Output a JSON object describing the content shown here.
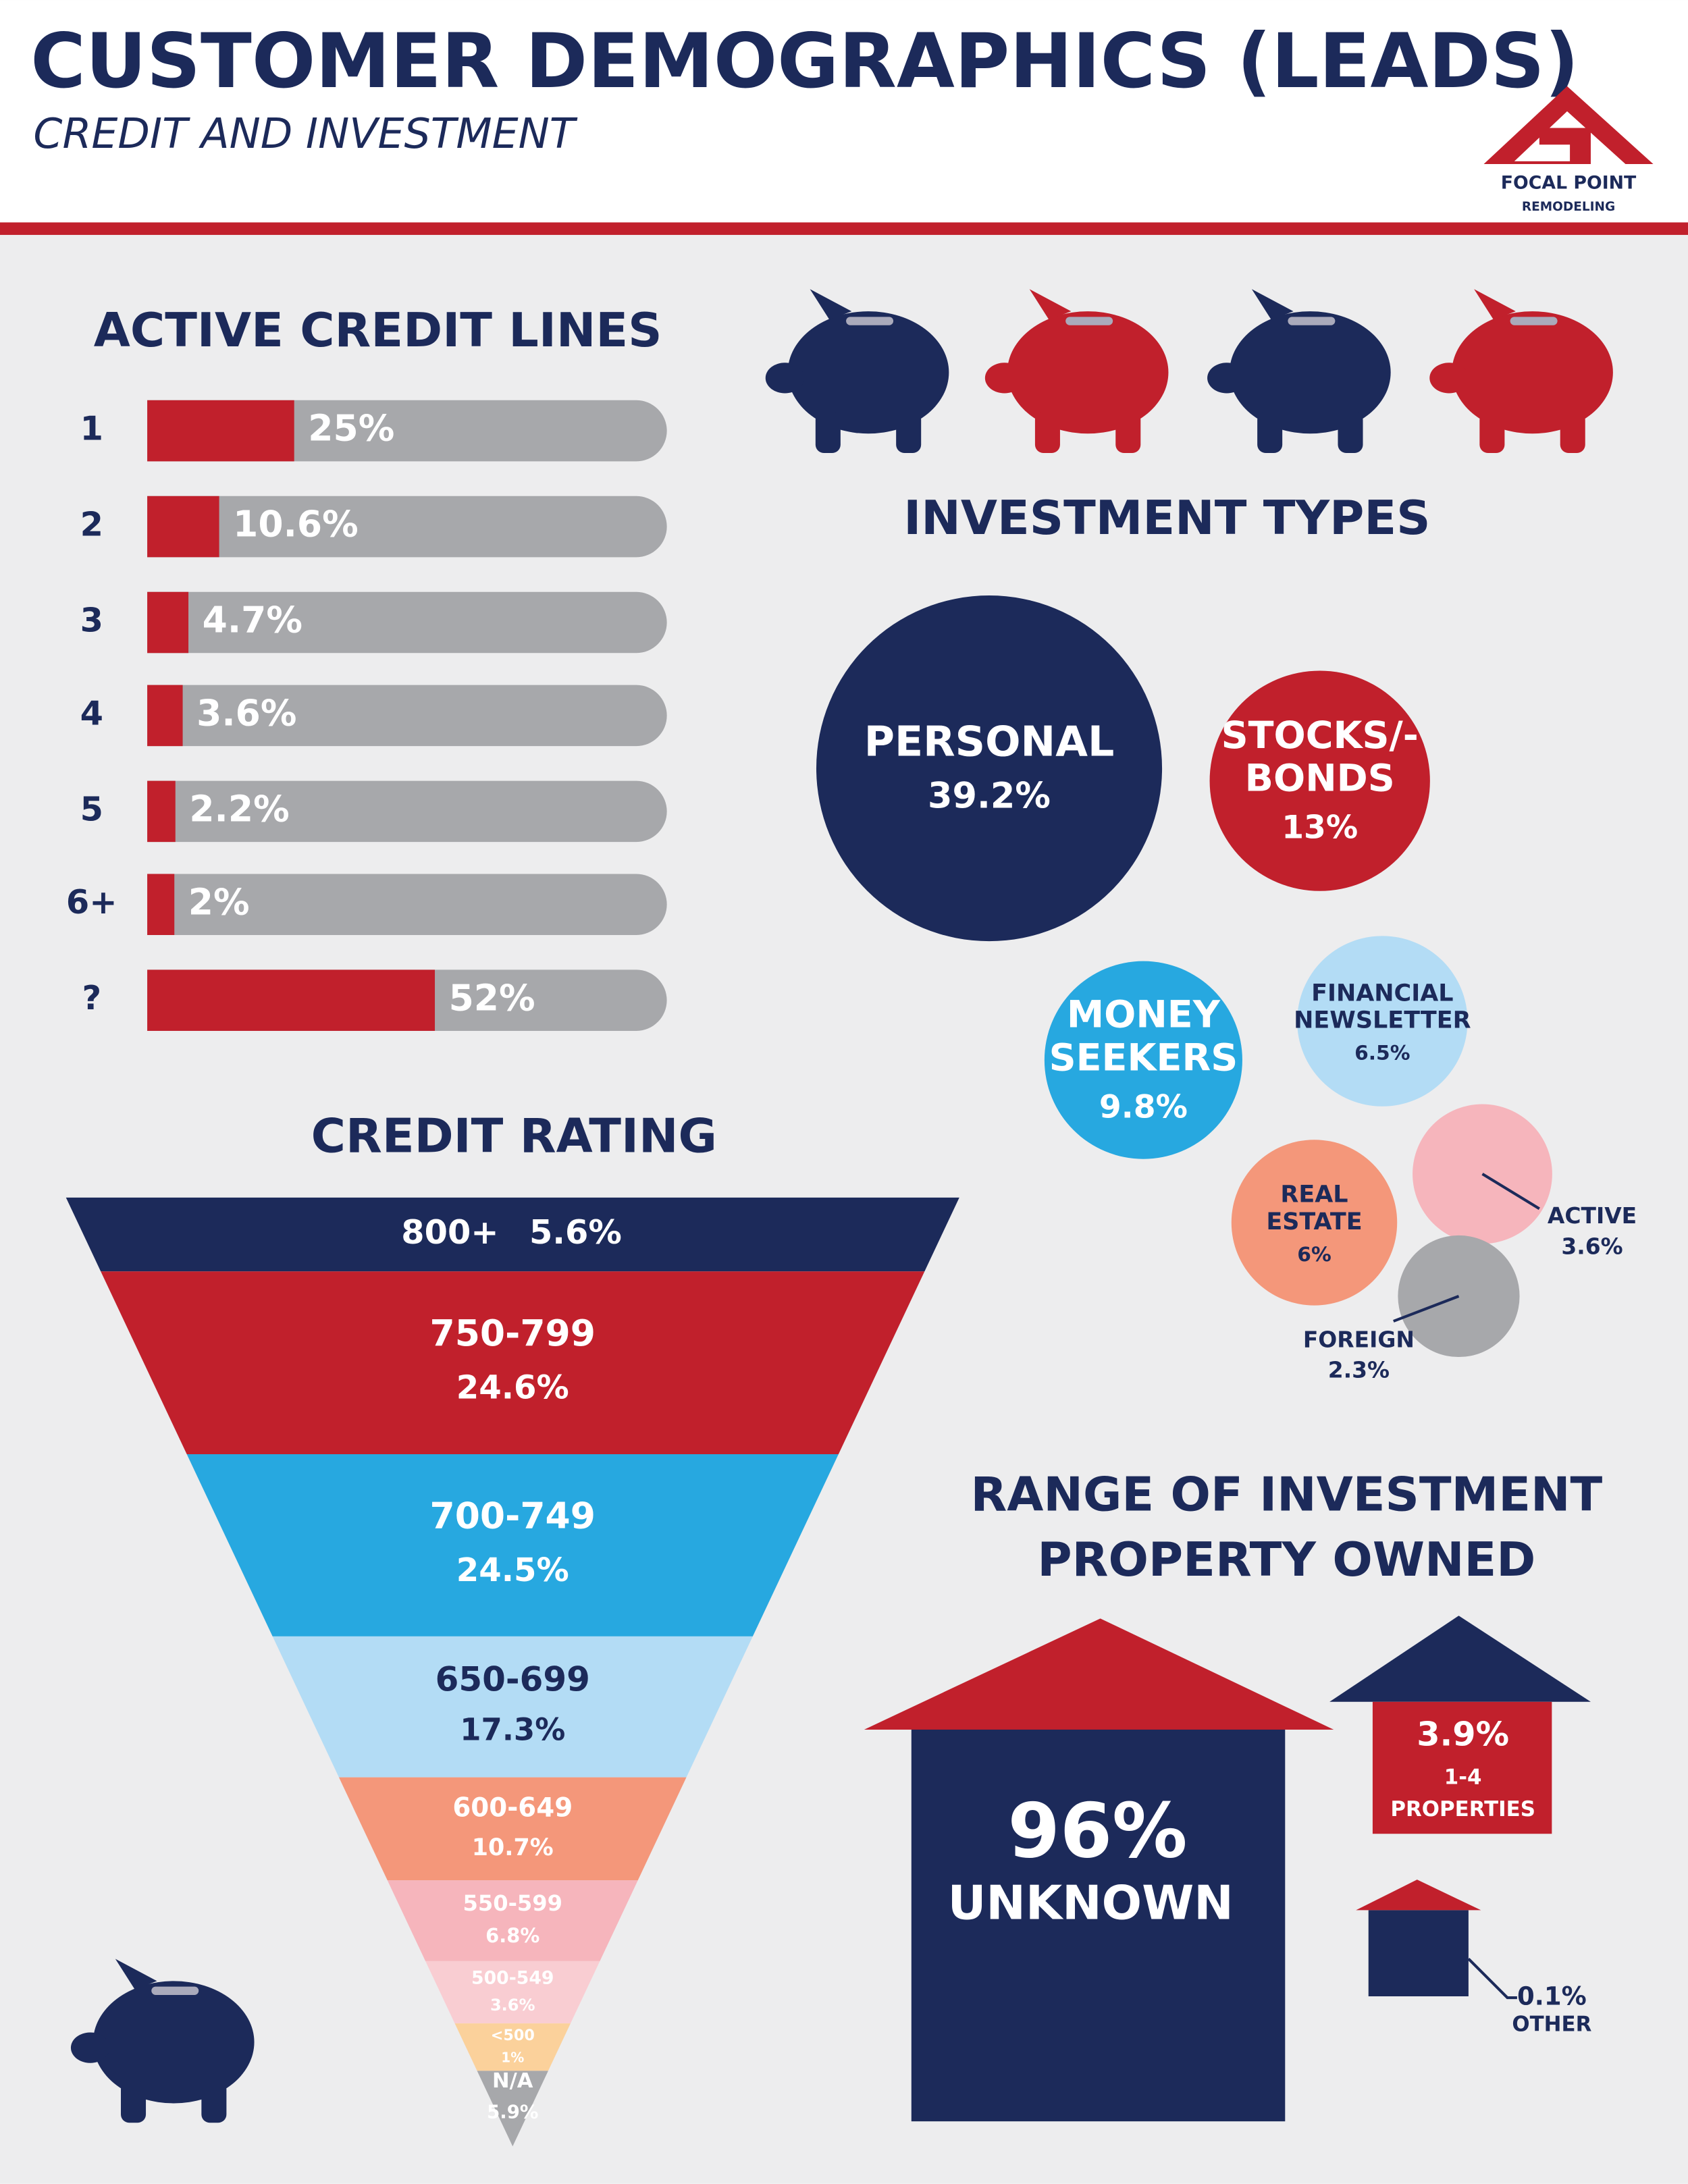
{
  "header": {
    "title": "CUSTOMER DEMOGRAPHICS (LEADS)",
    "subtitle": "CREDIT AND INVESTMENT",
    "logo": [
      "FOCAL POINT",
      "REMODELING"
    ]
  },
  "credit_lines": {
    "title": "ACTIVE CREDIT LINES",
    "categories": [
      "1",
      "2",
      "3",
      "4",
      "5",
      "6+",
      "?"
    ],
    "values": [
      25,
      10.6,
      4.7,
      3.6,
      2.2,
      2,
      52
    ],
    "value_labels": [
      "25%",
      "10.6%",
      "4.7%",
      "3.6%",
      "2.2%",
      "2%",
      "52%"
    ]
  },
  "investment_types": {
    "title": "INVESTMENT TYPES",
    "items": [
      {
        "label": [
          "PERSONAL"
        ],
        "value": 39.2,
        "value_label": "39.2%"
      },
      {
        "label": [
          "STOCKS/-",
          "BONDS"
        ],
        "value": 13,
        "value_label": "13%"
      },
      {
        "label": [
          "MONEY",
          "SEEKERS"
        ],
        "value": 9.8,
        "value_label": "9.8%"
      },
      {
        "label": [
          "FINANCIAL",
          "NEWSLETTER"
        ],
        "value": 6.5,
        "value_label": "6.5%"
      },
      {
        "label": [
          "REAL",
          "ESTATE"
        ],
        "value": 6,
        "value_label": "6%"
      },
      {
        "label": [
          "ACTIVE"
        ],
        "value": 3.6,
        "value_label": "3.6%"
      },
      {
        "label": [
          "FOREIGN"
        ],
        "value": 2.3,
        "value_label": "2.3%"
      }
    ]
  },
  "credit_rating": {
    "title": "CREDIT RATING",
    "categories": [
      "800+",
      "750-799",
      "700-749",
      "650-699",
      "600-649",
      "550-599",
      "500-549",
      "<500",
      "N/A"
    ],
    "values": [
      5.6,
      24.6,
      24.5,
      17.3,
      10.7,
      6.8,
      3.6,
      1,
      5.9
    ],
    "value_labels": [
      "5.6%",
      "24.6%",
      "24.5%",
      "17.3%",
      "10.7%",
      "6.8%",
      "3.6%",
      "1%",
      "5.9%"
    ]
  },
  "property": {
    "title": [
      "RANGE OF INVESTMENT",
      "PROPERTY OWNED"
    ],
    "items": [
      {
        "value": 96,
        "value_label": "96%",
        "label": [
          "UNKNOWN"
        ]
      },
      {
        "value": 3.9,
        "value_label": "3.9%",
        "label": [
          "1-4",
          "PROPERTIES"
        ]
      },
      {
        "value": 0.1,
        "value_label": "0.1%",
        "label": [
          "OTHER"
        ]
      }
    ]
  }
}
